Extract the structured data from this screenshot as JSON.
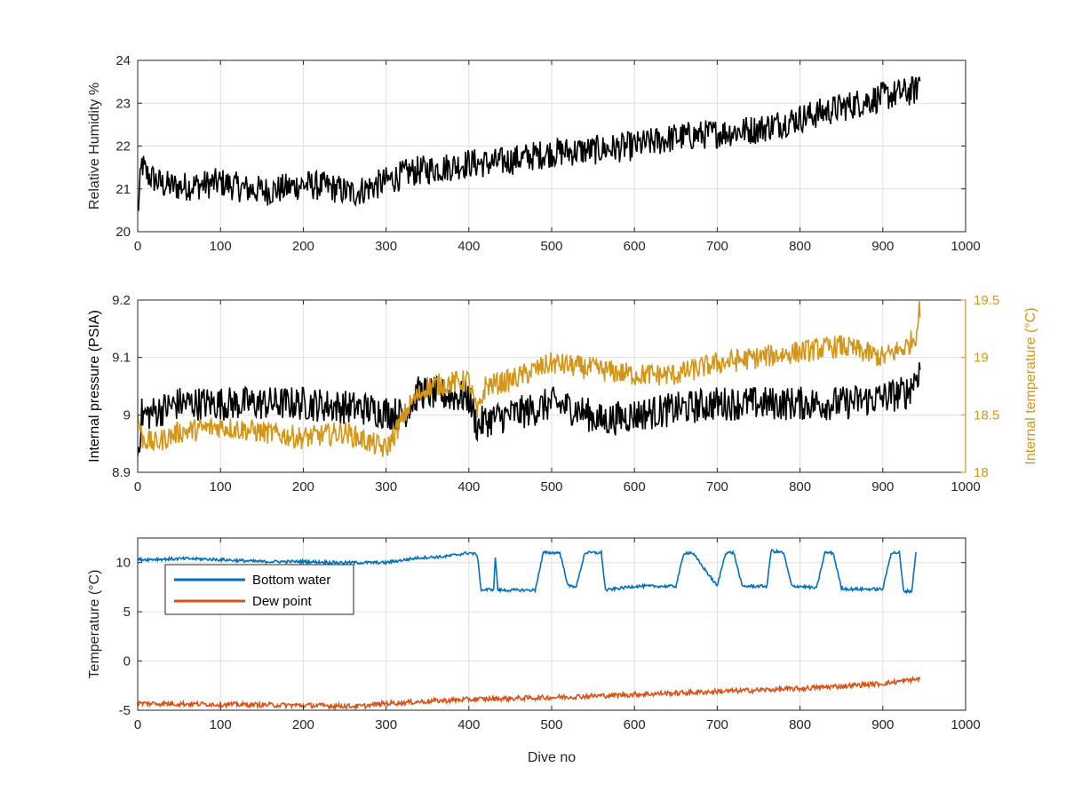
{
  "chart_data": [
    {
      "type": "line",
      "xlabel": "",
      "ylabel": "Relative Humidity %",
      "xlim": [
        0,
        1000
      ],
      "ylim": [
        20,
        24
      ],
      "xticks": [
        0,
        100,
        200,
        300,
        400,
        500,
        600,
        700,
        800,
        900,
        1000
      ],
      "yticks": [
        20,
        21,
        22,
        23,
        24
      ],
      "grid": true,
      "series": [
        {
          "name": "",
          "color": "#000000",
          "x": [
            0,
            5,
            10,
            30,
            50,
            80,
            100,
            130,
            160,
            200,
            230,
            260,
            290,
            330,
            370,
            400,
            430,
            460,
            500,
            550,
            600,
            650,
            700,
            750,
            800,
            850,
            900,
            940,
            945
          ],
          "y": [
            20.4,
            21.6,
            21.35,
            21.1,
            21.05,
            21.1,
            21.15,
            21.0,
            20.95,
            21.1,
            21.05,
            20.9,
            21.1,
            21.4,
            21.5,
            21.6,
            21.6,
            21.7,
            21.85,
            21.9,
            22.0,
            22.2,
            22.3,
            22.4,
            22.65,
            22.9,
            23.15,
            23.3,
            23.6
          ],
          "noise": 0.35
        }
      ]
    },
    {
      "type": "line",
      "xlabel": "",
      "ylabel": "Internal pressure (PSIA)",
      "ylabel_right": "Internal temperature (°C)",
      "xlim": [
        0,
        1000
      ],
      "ylim": [
        8.9,
        9.2
      ],
      "ylim_right": [
        18,
        19.5
      ],
      "xticks": [
        0,
        100,
        200,
        300,
        400,
        500,
        600,
        700,
        800,
        900,
        1000
      ],
      "yticks": [
        8.9,
        9,
        9.1,
        9.2
      ],
      "yticks_right": [
        18,
        18.5,
        19,
        19.5
      ],
      "grid": true,
      "series": [
        {
          "name": "",
          "axis": "left",
          "color": "#000000",
          "x": [
            0,
            5,
            10,
            50,
            100,
            200,
            280,
            320,
            340,
            400,
            410,
            420,
            450,
            480,
            500,
            530,
            560,
            600,
            650,
            700,
            750,
            800,
            850,
            900,
            930,
            945
          ],
          "y": [
            8.93,
            9.0,
            9.0,
            9.02,
            9.02,
            9.02,
            9.01,
            9.0,
            9.04,
            9.03,
            8.98,
            8.99,
            9.0,
            9.01,
            9.02,
            9.01,
            8.99,
            9.0,
            9.01,
            9.02,
            9.02,
            9.02,
            9.02,
            9.03,
            9.04,
            9.08
          ],
          "noise": 0.03
        },
        {
          "name": "",
          "axis": "right",
          "color": "#D4961A",
          "x": [
            0,
            5,
            20,
            50,
            100,
            150,
            200,
            250,
            300,
            330,
            350,
            400,
            410,
            420,
            450,
            500,
            550,
            600,
            650,
            700,
            750,
            800,
            850,
            900,
            930,
            940,
            945
          ],
          "y": [
            18.5,
            18.3,
            18.25,
            18.35,
            18.4,
            18.35,
            18.3,
            18.35,
            18.2,
            18.6,
            18.75,
            18.8,
            18.5,
            18.75,
            18.8,
            18.95,
            18.9,
            18.85,
            18.85,
            18.95,
            19.0,
            19.05,
            19.1,
            19.0,
            19.1,
            19.2,
            19.45
          ],
          "noise": 0.1
        }
      ]
    },
    {
      "type": "line",
      "xlabel": "Dive no",
      "ylabel": "Temperature (°C)",
      "xlim": [
        0,
        1000
      ],
      "ylim": [
        -5,
        12.5
      ],
      "xticks": [
        0,
        100,
        200,
        300,
        400,
        500,
        600,
        700,
        800,
        900,
        1000
      ],
      "yticks": [
        -5,
        0,
        5,
        10
      ],
      "grid": true,
      "legend": "top-left",
      "series": [
        {
          "name": "Bottom water",
          "color": "#0072BD",
          "x": [
            0,
            60,
            100,
            150,
            200,
            250,
            300,
            340,
            370,
            400,
            410,
            415,
            430,
            432,
            435,
            480,
            490,
            510,
            520,
            530,
            540,
            560,
            565,
            600,
            650,
            660,
            670,
            700,
            710,
            720,
            730,
            760,
            765,
            780,
            790,
            800,
            820,
            830,
            840,
            850,
            860,
            900,
            910,
            920,
            925,
            935,
            940
          ],
          "y": [
            10.3,
            10.4,
            10.3,
            10.1,
            10.1,
            10.0,
            10.0,
            10.5,
            10.6,
            11.0,
            10.8,
            7.2,
            7.3,
            10.6,
            7.2,
            7.2,
            11.0,
            11.0,
            7.6,
            7.6,
            11.0,
            11.0,
            7.2,
            7.6,
            7.6,
            11.0,
            11.0,
            7.6,
            11.0,
            11.0,
            7.6,
            7.6,
            11.2,
            11.0,
            7.6,
            7.6,
            7.4,
            11.0,
            11.0,
            7.4,
            7.3,
            7.3,
            11.0,
            11.0,
            7.1,
            7.1,
            11.1
          ],
          "noise": 0.15
        },
        {
          "name": "Dew point",
          "color": "#D95319",
          "x": [
            0,
            100,
            200,
            270,
            300,
            400,
            500,
            600,
            700,
            800,
            900,
            945
          ],
          "y": [
            -4.3,
            -4.4,
            -4.5,
            -4.6,
            -4.3,
            -3.9,
            -3.7,
            -3.4,
            -3.1,
            -2.8,
            -2.3,
            -1.8
          ],
          "noise": 0.25
        }
      ]
    }
  ]
}
